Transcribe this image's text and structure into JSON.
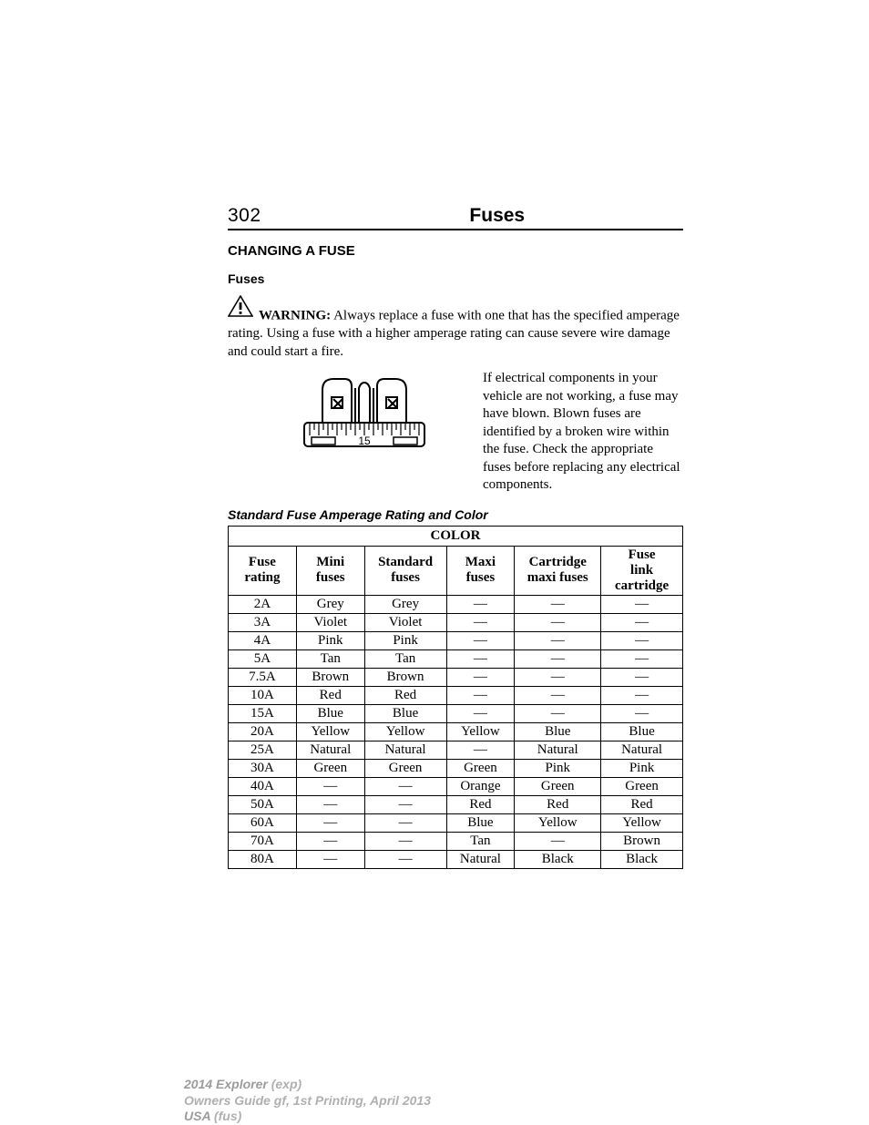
{
  "header": {
    "page_number": "302",
    "title": "Fuses"
  },
  "section": {
    "h2": "CHANGING A FUSE",
    "h3": "Fuses"
  },
  "warning": {
    "label": "WARNING:",
    "text_inline": " Always replace a fuse with one that has the specified amperage rating. Using a fuse with a higher amperage rating can cause severe wire damage and could start a fire.",
    "icon_name": "warning-triangle-icon"
  },
  "diagram": {
    "label_value": "15"
  },
  "info_paragraph": "If electrical components in your vehicle are not working, a fuse may have blown. Blown fuses are identified by a broken wire within the fuse. Check the appropriate fuses before replacing any electrical components.",
  "table": {
    "caption": "Standard Fuse Amperage Rating and Color",
    "top_heading": "COLOR",
    "columns": [
      "Fuse rating",
      "Mini fuses",
      "Standard fuses",
      "Maxi fuses",
      "Cartridge maxi fuses",
      "Fuse link cartridge"
    ],
    "col_widths_pct": [
      15,
      15,
      18,
      15,
      19,
      18
    ],
    "rows": [
      [
        "2A",
        "Grey",
        "Grey",
        "—",
        "—",
        "—"
      ],
      [
        "3A",
        "Violet",
        "Violet",
        "—",
        "—",
        "—"
      ],
      [
        "4A",
        "Pink",
        "Pink",
        "—",
        "—",
        "—"
      ],
      [
        "5A",
        "Tan",
        "Tan",
        "—",
        "—",
        "—"
      ],
      [
        "7.5A",
        "Brown",
        "Brown",
        "—",
        "—",
        "—"
      ],
      [
        "10A",
        "Red",
        "Red",
        "—",
        "—",
        "—"
      ],
      [
        "15A",
        "Blue",
        "Blue",
        "—",
        "—",
        "—"
      ],
      [
        "20A",
        "Yellow",
        "Yellow",
        "Yellow",
        "Blue",
        "Blue"
      ],
      [
        "25A",
        "Natural",
        "Natural",
        "—",
        "Natural",
        "Natural"
      ],
      [
        "30A",
        "Green",
        "Green",
        "Green",
        "Pink",
        "Pink"
      ],
      [
        "40A",
        "—",
        "—",
        "Orange",
        "Green",
        "Green"
      ],
      [
        "50A",
        "—",
        "—",
        "Red",
        "Red",
        "Red"
      ],
      [
        "60A",
        "—",
        "—",
        "Blue",
        "Yellow",
        "Yellow"
      ],
      [
        "70A",
        "—",
        "—",
        "Tan",
        "—",
        "Brown"
      ],
      [
        "80A",
        "—",
        "—",
        "Natural",
        "Black",
        "Black"
      ]
    ]
  },
  "footer": {
    "line1_strong": "2014 Explorer",
    "line1_rest": " (exp)",
    "line2": "Owners Guide gf, 1st Printing, April 2013",
    "line3_strong": "USA",
    "line3_rest": " (fus)"
  },
  "colors": {
    "text": "#000000",
    "bg": "#ffffff",
    "footer_text": "#b0b0b0",
    "footer_strong": "#9c9c9c",
    "table_border": "#000000"
  },
  "fonts": {
    "body": "Times New Roman, serif",
    "headings": "Arial, Helvetica, sans-serif",
    "h2_size_pt": 11,
    "h3_size_pt": 10,
    "body_size_pt": 11,
    "title_size_pt": 16
  }
}
